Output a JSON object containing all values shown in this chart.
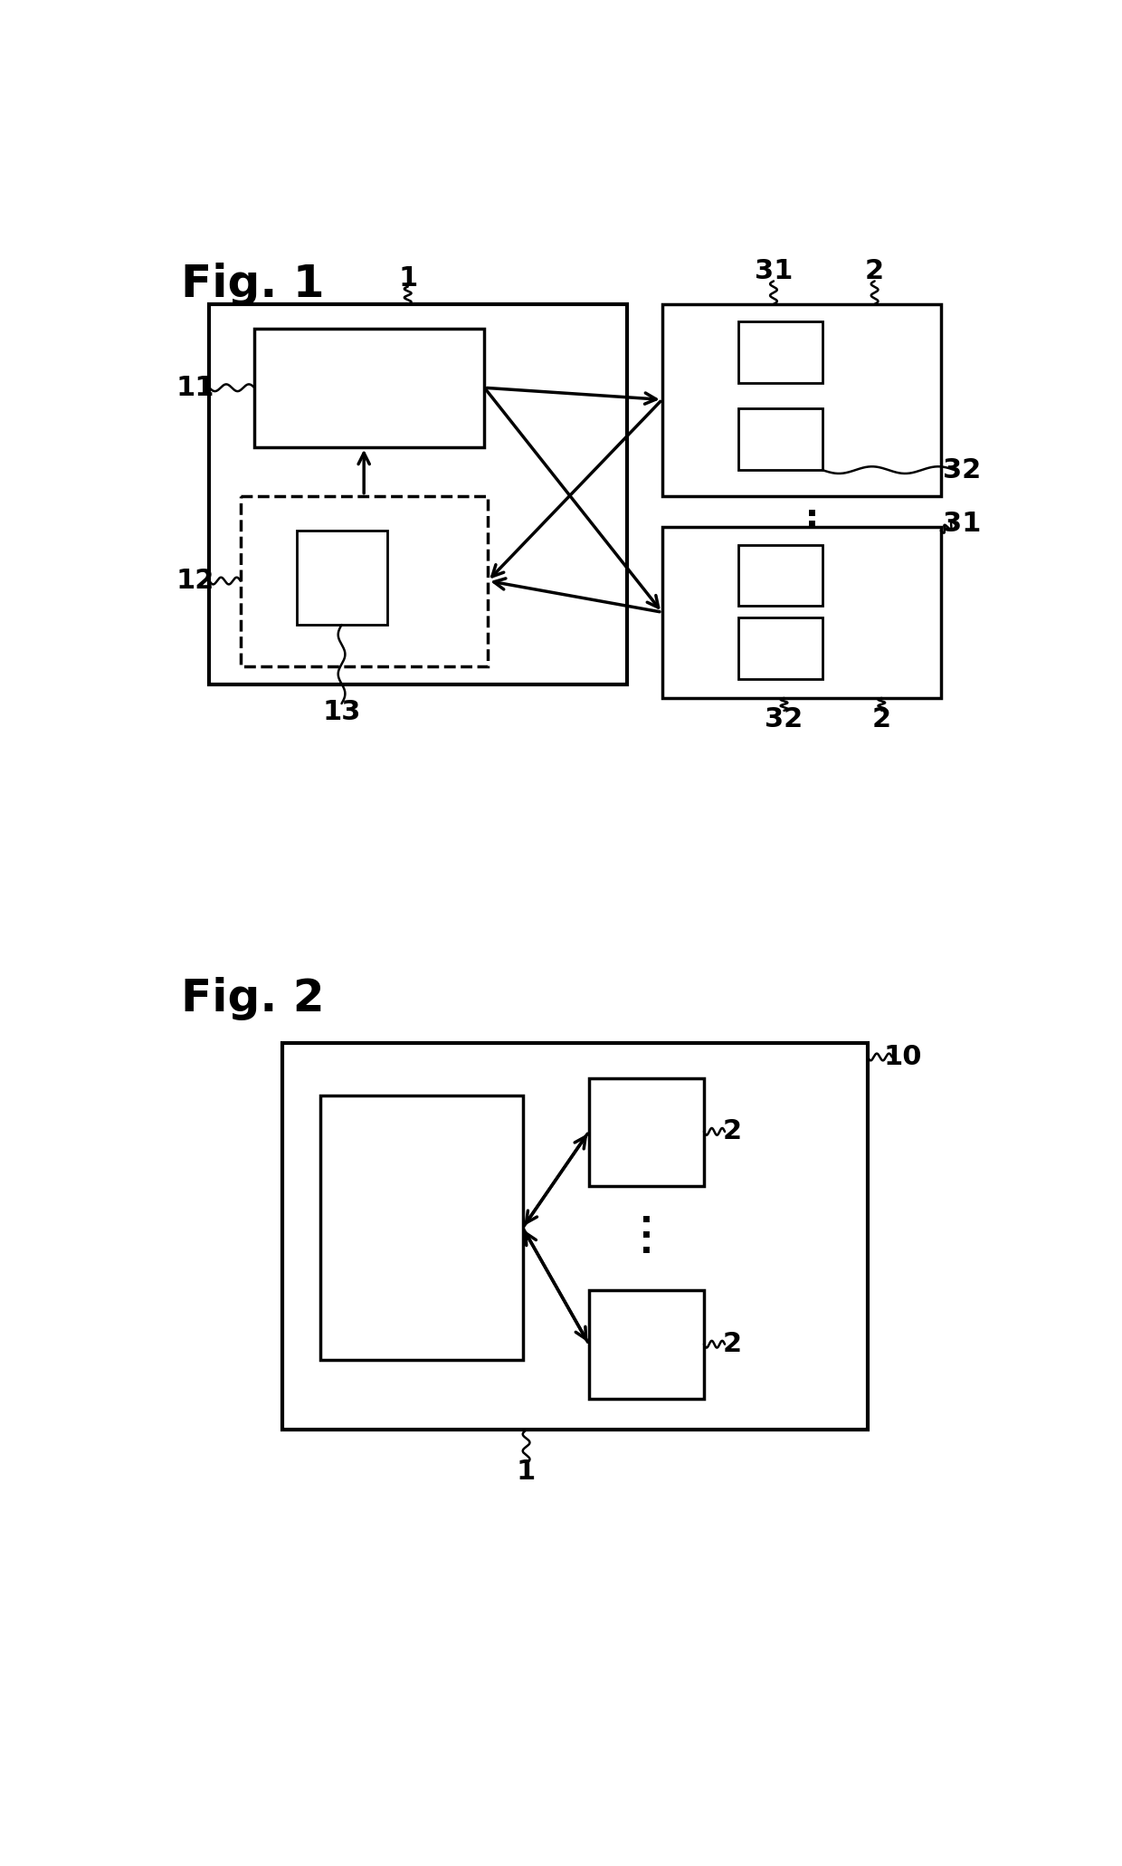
{
  "fig_width": 12.4,
  "fig_height": 20.61,
  "bg_color": "#ffffff",
  "fig1_label": "Fig. 1",
  "fig2_label": "Fig. 2",
  "lw_outer": 3.0,
  "lw_inner": 2.5,
  "lw_small": 2.0,
  "fontsize_fig": 36,
  "fontsize_label": 22
}
